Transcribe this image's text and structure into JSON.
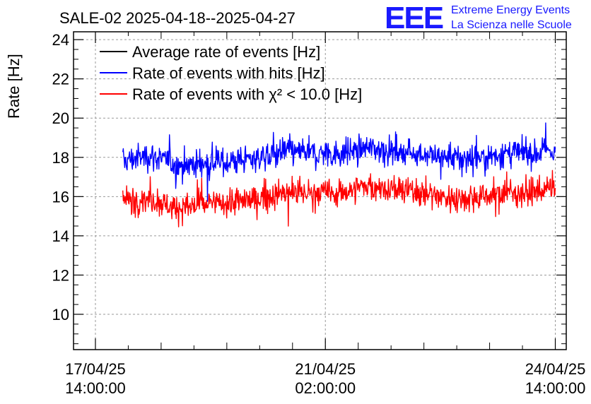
{
  "header": {
    "title": "SALE-02 2025-04-18--2025-04-27",
    "logo": {
      "mark": "EEE",
      "line1": "Extreme Energy Events",
      "line2": "La Scienza nelle Scuole",
      "color": "#1a1aff"
    }
  },
  "chart_data": {
    "type": "line",
    "title": "SALE-02 2025-04-18--2025-04-27",
    "xlabel": "",
    "ylabel": "Rate [Hz]",
    "ylim": [
      8.2,
      24.4
    ],
    "yticks": [
      10,
      12,
      14,
      16,
      18,
      20,
      22,
      24
    ],
    "xlim_hours": [
      -8,
      172
    ],
    "xticks": [
      {
        "hours": 0,
        "label_date": "17/04/25",
        "label_time": "14:00:00"
      },
      {
        "hours": 84,
        "label_date": "21/04/25",
        "label_time": "02:00:00"
      },
      {
        "hours": 168,
        "label_date": "24/04/25",
        "label_time": "14:00:00"
      }
    ],
    "grid": true,
    "legend_position": "top-left",
    "x_start_hours": 10,
    "x_end_hours": 168,
    "series": [
      {
        "name": "Average rate of events [Hz]",
        "color": "#000000",
        "values": []
      },
      {
        "name": "Rate of events with hits [Hz]",
        "color": "#0000ff",
        "mean_x_hours": [
          10,
          20,
          30,
          40,
          50,
          60,
          70,
          80,
          90,
          100,
          110,
          120,
          130,
          140,
          150,
          160,
          168
        ],
        "mean_values": [
          17.8,
          18.1,
          17.6,
          17.7,
          17.8,
          18.0,
          18.3,
          18.2,
          18.2,
          18.5,
          18.3,
          18.2,
          17.9,
          18.0,
          18.2,
          18.2,
          18.4
        ],
        "spread": 0.9
      },
      {
        "name": "Rate of events with χ² < 10.0 [Hz]",
        "color": "#ff0000",
        "mean_x_hours": [
          10,
          20,
          30,
          40,
          50,
          60,
          70,
          80,
          90,
          100,
          110,
          120,
          130,
          140,
          150,
          160,
          168
        ],
        "mean_values": [
          15.8,
          15.9,
          15.4,
          15.6,
          15.7,
          15.9,
          16.2,
          16.2,
          16.2,
          16.6,
          16.3,
          16.2,
          15.9,
          16.0,
          16.2,
          16.2,
          16.5
        ],
        "spread": 0.9
      }
    ]
  }
}
